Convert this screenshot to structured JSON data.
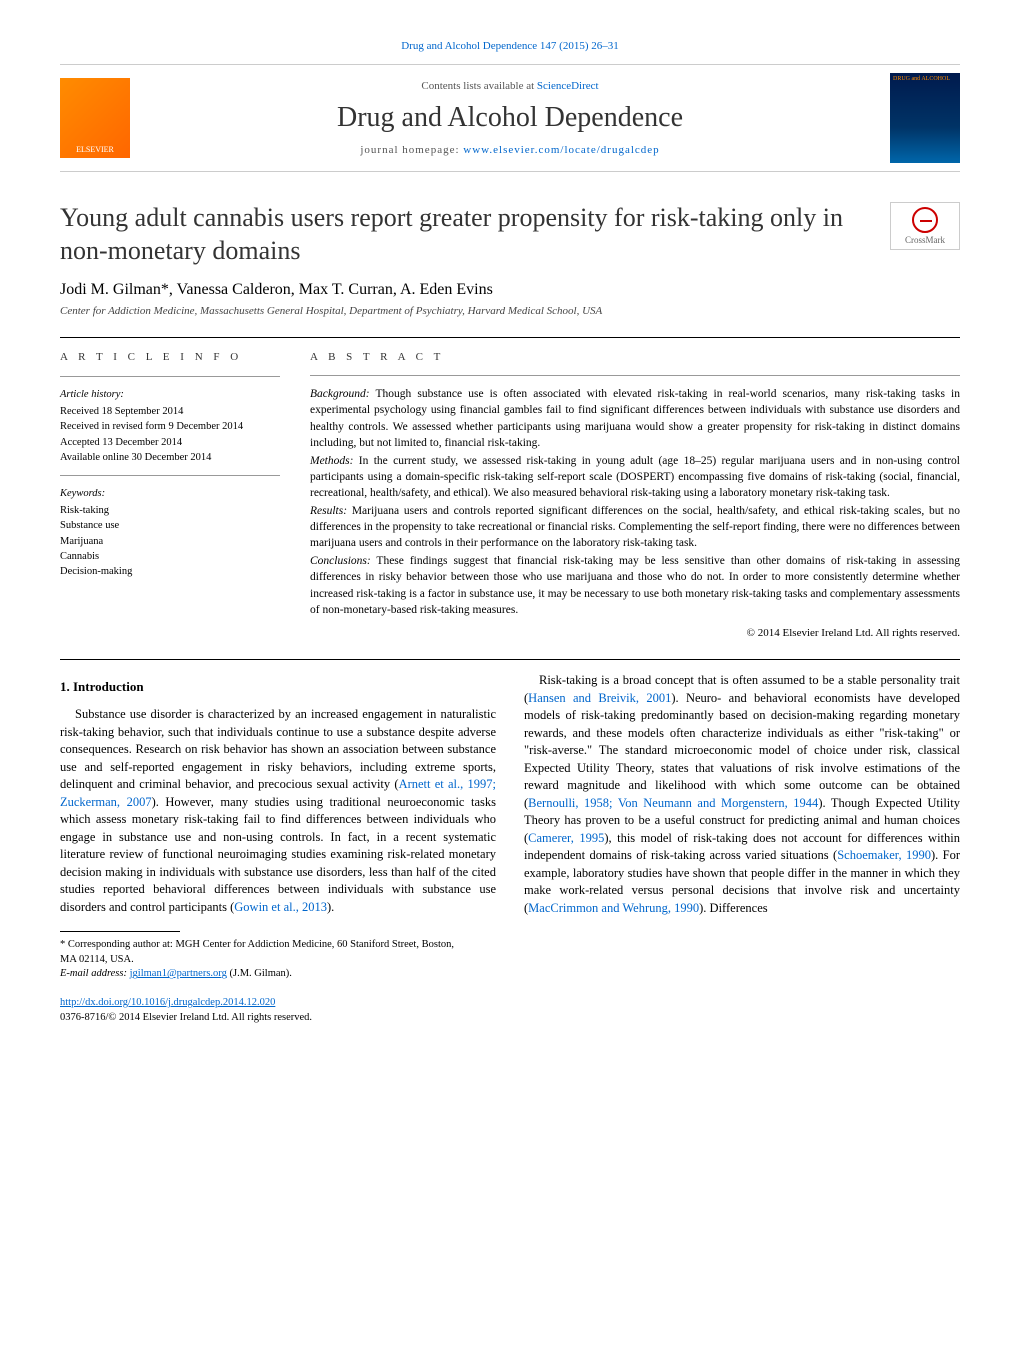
{
  "top_citation": "Drug and Alcohol Dependence 147 (2015) 26–31",
  "masthead": {
    "contents_prefix": "Contents lists available at ",
    "contents_link_text": "ScienceDirect",
    "journal_name": "Drug and Alcohol Dependence",
    "homepage_prefix": "journal homepage: ",
    "homepage_link_text": "www.elsevier.com/locate/drugalcdep",
    "publisher_logo_text": "ELSEVIER",
    "cover_text": "DRUG and ALCOHOL"
  },
  "article": {
    "title": "Young adult cannabis users report greater propensity for risk-taking only in non-monetary domains",
    "crossmark_label": "CrossMark",
    "authors": "Jodi M. Gilman*, Vanessa Calderon, Max T. Curran, A. Eden Evins",
    "affiliation": "Center for Addiction Medicine, Massachusetts General Hospital, Department of Psychiatry, Harvard Medical School, USA"
  },
  "article_info": {
    "heading": "a r t i c l e   i n f o",
    "history_label": "Article history:",
    "received": "Received 18 September 2014",
    "revised": "Received in revised form 9 December 2014",
    "accepted": "Accepted 13 December 2014",
    "online": "Available online 30 December 2014",
    "keywords_label": "Keywords:",
    "keywords": [
      "Risk-taking",
      "Substance use",
      "Marijuana",
      "Cannabis",
      "Decision-making"
    ]
  },
  "abstract": {
    "heading": "a b s t r a c t",
    "background_label": "Background:",
    "background_text": " Though substance use is often associated with elevated risk-taking in real-world scenarios, many risk-taking tasks in experimental psychology using financial gambles fail to find significant differences between individuals with substance use disorders and healthy controls. We assessed whether participants using marijuana would show a greater propensity for risk-taking in distinct domains including, but not limited to, financial risk-taking.",
    "methods_label": "Methods:",
    "methods_text": " In the current study, we assessed risk-taking in young adult (age 18–25) regular marijuana users and in non-using control participants using a domain-specific risk-taking self-report scale (DOSPERT) encompassing five domains of risk-taking (social, financial, recreational, health/safety, and ethical). We also measured behavioral risk-taking using a laboratory monetary risk-taking task.",
    "results_label": "Results:",
    "results_text": " Marijuana users and controls reported significant differences on the social, health/safety, and ethical risk-taking scales, but no differences in the propensity to take recreational or financial risks. Complementing the self-report finding, there were no differences between marijuana users and controls in their performance on the laboratory risk-taking task.",
    "conclusions_label": "Conclusions:",
    "conclusions_text": " These findings suggest that financial risk-taking may be less sensitive than other domains of risk-taking in assessing differences in risky behavior between those who use marijuana and those who do not. In order to more consistently determine whether increased risk-taking is a factor in substance use, it may be necessary to use both monetary risk-taking tasks and complementary assessments of non-monetary-based risk-taking measures.",
    "copyright": "© 2014 Elsevier Ireland Ltd. All rights reserved."
  },
  "body": {
    "section_heading": "1. Introduction",
    "p1a": "Substance use disorder is characterized by an increased engagement in naturalistic risk-taking behavior, such that individuals continue to use a substance despite adverse consequences. Research on risk behavior has shown an association between substance use and self-reported engagement in risky behaviors, including extreme sports, delinquent and criminal behavior, and precocious sexual activity (",
    "p1_ref1": "Arnett et al., 1997; Zuckerman, 2007",
    "p1b": "). However, many studies using traditional neuroeconomic tasks which assess monetary risk-taking fail to find differences between individuals who engage in substance use and non-using controls. In fact, in a recent systematic literature review of functional neuroimaging studies examining risk-related monetary decision making in individuals with substance use disorders, less than half of ",
    "p1c": "the cited studies reported behavioral differences between individuals with substance use disorders and control participants (",
    "p1_ref2": "Gowin et al., 2013",
    "p1d": ").",
    "p2a": "Risk-taking is a broad concept that is often assumed to be a stable personality trait (",
    "p2_ref1": "Hansen and Breivik, 2001",
    "p2b": "). Neuro- and behavioral economists have developed models of risk-taking predominantly based on decision-making regarding monetary rewards, and these models often characterize individuals as either \"risk-taking\" or \"risk-averse.\" The standard microeconomic model of choice under risk, classical Expected Utility Theory, states that valuations of risk involve estimations of the reward magnitude and likelihood with which some outcome can be obtained (",
    "p2_ref2": "Bernoulli, 1958; Von Neumann and Morgenstern, 1944",
    "p2c": "). Though Expected Utility Theory has proven to be a useful construct for predicting animal and human choices (",
    "p2_ref3": "Camerer, 1995",
    "p2d": "), this model of risk-taking does not account for differences within independent domains of risk-taking across varied situations (",
    "p2_ref4": "Schoemaker, 1990",
    "p2e": "). For example, laboratory studies have shown that people differ in the manner in which they make work-related versus personal decisions that involve risk and uncertainty (",
    "p2_ref5": "MacCrimmon and Wehrung, 1990",
    "p2f": "). Differences"
  },
  "footnotes": {
    "corresponding": "* Corresponding author at: MGH Center for Addiction Medicine, 60 Staniford Street, Boston, MA 02114, USA.",
    "email_label": "E-mail address: ",
    "email": "jgilman1@partners.org",
    "email_suffix": " (J.M. Gilman)."
  },
  "footer": {
    "doi": "http://dx.doi.org/10.1016/j.drugalcdep.2014.12.020",
    "issn_line": "0376-8716/© 2014 Elsevier Ireland Ltd. All rights reserved."
  },
  "colors": {
    "link": "#0066cc",
    "elsevier_orange": "#ff8c00",
    "text": "#000000",
    "muted": "#555555"
  }
}
